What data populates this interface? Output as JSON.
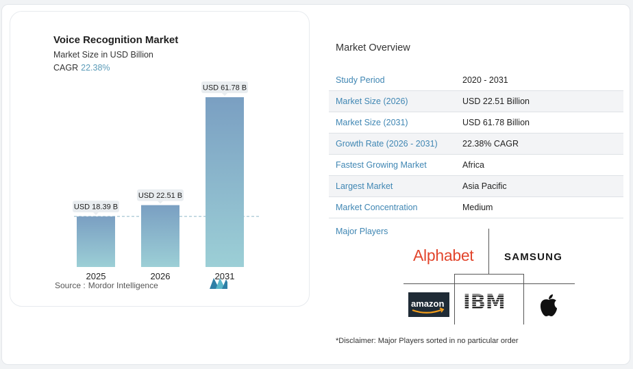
{
  "chart_data": {
    "type": "bar",
    "title": "Voice Recognition Market",
    "subtitle": "Market Size in USD Billion",
    "cagr_label": "CAGR",
    "cagr_value": "22.38%",
    "categories": [
      "2025",
      "2026",
      "2031"
    ],
    "values": [
      18.39,
      22.51,
      61.78
    ],
    "value_labels": [
      "USD 18.39 B",
      "USD 22.51 B",
      "USD 61.78 B"
    ],
    "ylim": [
      0,
      64
    ],
    "reference_line_value": 18.39,
    "xlabel": "",
    "ylabel": "",
    "grid": false
  },
  "source": {
    "label": "Source :",
    "name": "Mordor Intelligence"
  },
  "overview": {
    "title": "Market Overview",
    "rows": [
      {
        "label": "Study Period",
        "value": "2020 - 2031"
      },
      {
        "label": "Market Size (2026)",
        "value": "USD 22.51 Billion"
      },
      {
        "label": "Market Size (2031)",
        "value": "USD 61.78 Billion"
      },
      {
        "label": "Growth Rate (2026 - 2031)",
        "value": "22.38% CAGR"
      },
      {
        "label": "Fastest Growing Market",
        "value": "Africa"
      },
      {
        "label": "Largest Market",
        "value": "Asia Pacific"
      },
      {
        "label": "Market Concentration",
        "value": "Medium"
      }
    ]
  },
  "major_players": {
    "label": "Major Players",
    "logos": [
      "Alphabet",
      "SAMSUNG",
      "amazon",
      "IBM",
      "apple-logo"
    ]
  },
  "disclaimer": "*Disclaimer: Major Players sorted in no particular order",
  "colors": {
    "bar_top": "#7a9fc2",
    "bar_bottom": "#9ccfd6",
    "accent": "#3f86b3",
    "alphabet": "#e2452c"
  }
}
